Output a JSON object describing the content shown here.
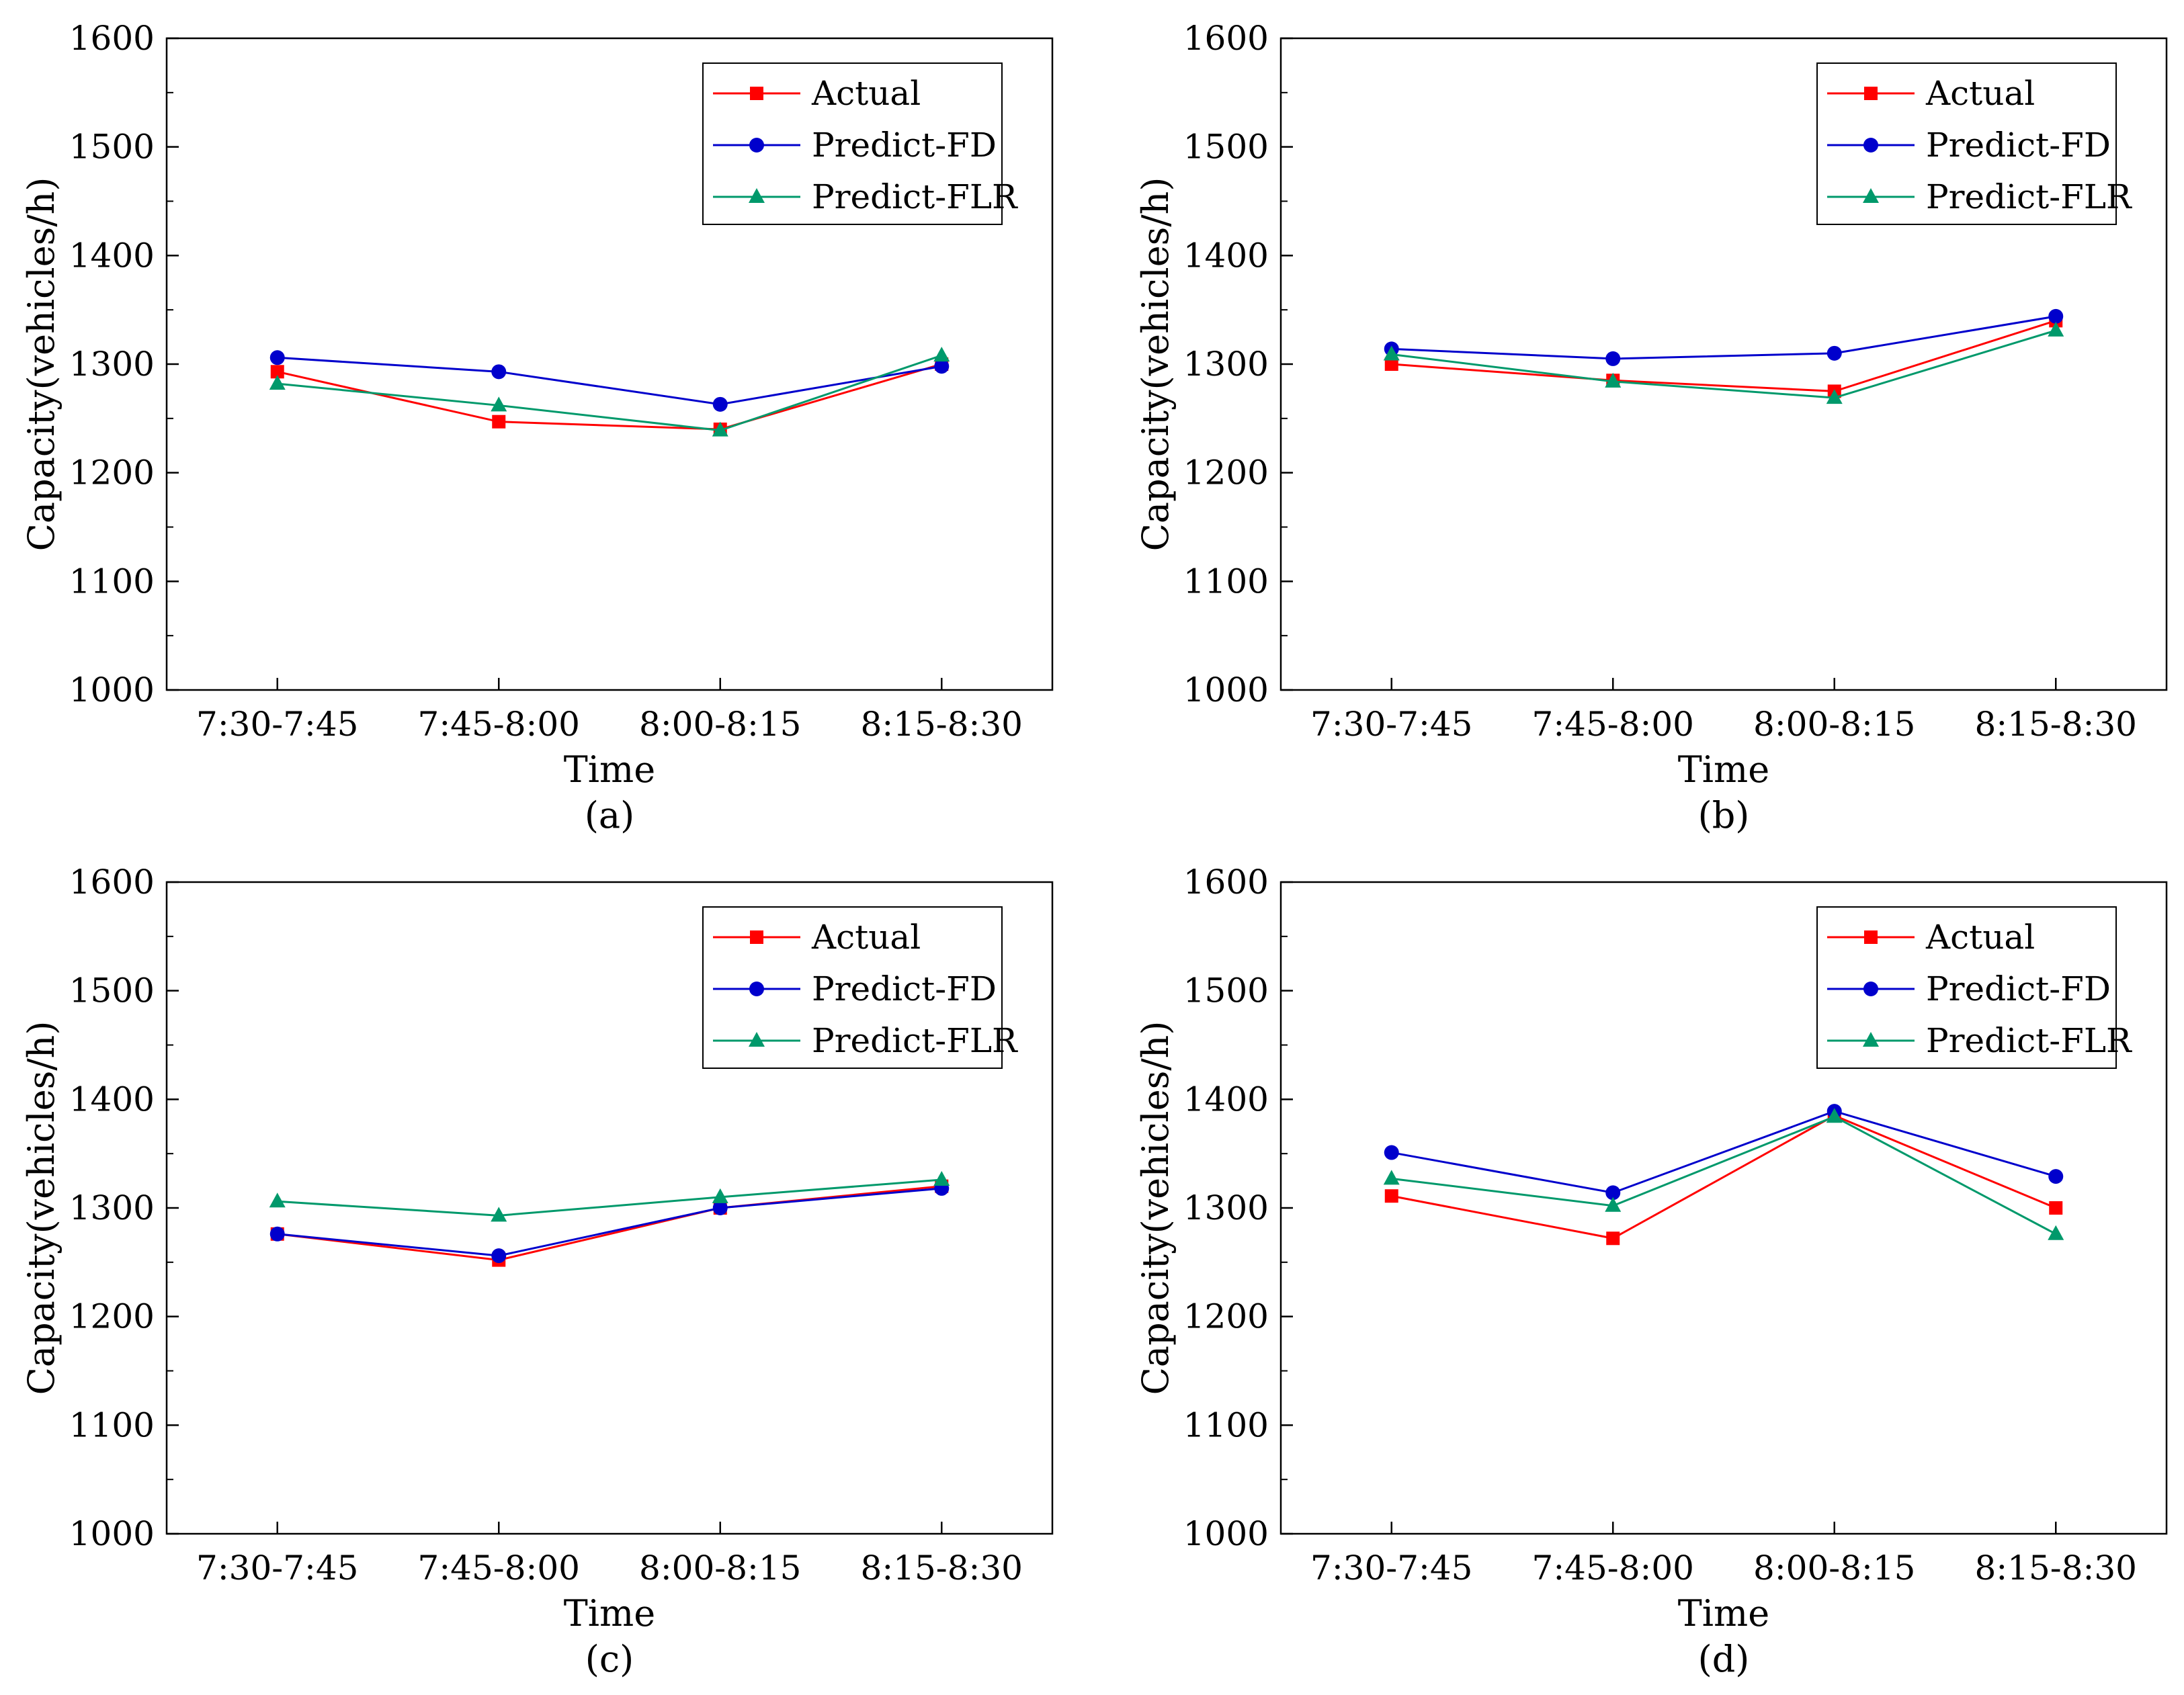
{
  "figure": {
    "colors": {
      "actual": "#ff0000",
      "predict_fd": "#0000cc",
      "predict_flr": "#00996b",
      "axis": "#000000"
    },
    "marker_shapes": {
      "Actual": "square",
      "Predict-FD": "circle",
      "Predict-FLR": "triangle"
    }
  },
  "chart_data": [
    {
      "type": "line",
      "caption": "(a)",
      "xlabel": "Time",
      "ylabel": "Capacity(vehicles/h)",
      "categories": [
        "7:30-7:45",
        "7:45-8:00",
        "8:00-8:15",
        "8:15-8:30"
      ],
      "ylim": [
        1000,
        1600
      ],
      "yticks": [
        1000,
        1100,
        1200,
        1300,
        1400,
        1500,
        1600
      ],
      "legend_position": "top-right",
      "series": [
        {
          "name": "Actual",
          "values": [
            1293,
            1247,
            1240,
            1300
          ]
        },
        {
          "name": "Predict-FD",
          "values": [
            1306,
            1293,
            1263,
            1298
          ]
        },
        {
          "name": "Predict-FLR",
          "values": [
            1282,
            1262,
            1239,
            1308
          ]
        }
      ]
    },
    {
      "type": "line",
      "caption": "(b)",
      "xlabel": "Time",
      "ylabel": "Capacity(vehicles/h)",
      "categories": [
        "7:30-7:45",
        "7:45-8:00",
        "8:00-8:15",
        "8:15-8:30"
      ],
      "ylim": [
        1000,
        1600
      ],
      "yticks": [
        1000,
        1100,
        1200,
        1300,
        1400,
        1500,
        1600
      ],
      "legend_position": "top-right",
      "series": [
        {
          "name": "Actual",
          "values": [
            1300,
            1285,
            1275,
            1340
          ]
        },
        {
          "name": "Predict-FD",
          "values": [
            1314,
            1305,
            1310,
            1344
          ]
        },
        {
          "name": "Predict-FLR",
          "values": [
            1309,
            1284,
            1269,
            1331
          ]
        }
      ]
    },
    {
      "type": "line",
      "caption": "(c)",
      "xlabel": "Time",
      "ylabel": "Capacity(vehicles/h)",
      "categories": [
        "7:30-7:45",
        "7:45-8:00",
        "8:00-8:15",
        "8:15-8:30"
      ],
      "ylim": [
        1000,
        1600
      ],
      "yticks": [
        1000,
        1100,
        1200,
        1300,
        1400,
        1500,
        1600
      ],
      "legend_position": "top-right",
      "series": [
        {
          "name": "Actual",
          "values": [
            1276,
            1252,
            1300,
            1320
          ]
        },
        {
          "name": "Predict-FD",
          "values": [
            1276,
            1256,
            1300,
            1318
          ]
        },
        {
          "name": "Predict-FLR",
          "values": [
            1306,
            1293,
            1310,
            1326
          ]
        }
      ]
    },
    {
      "type": "line",
      "caption": "(d)",
      "xlabel": "Time",
      "ylabel": "Capacity(vehicles/h)",
      "categories": [
        "7:30-7:45",
        "7:45-8:00",
        "8:00-8:15",
        "8:15-8:30"
      ],
      "ylim": [
        1000,
        1600
      ],
      "yticks": [
        1000,
        1100,
        1200,
        1300,
        1400,
        1500,
        1600
      ],
      "legend_position": "top-right",
      "series": [
        {
          "name": "Actual",
          "values": [
            1311,
            1272,
            1385,
            1300
          ]
        },
        {
          "name": "Predict-FD",
          "values": [
            1351,
            1314,
            1389,
            1329
          ]
        },
        {
          "name": "Predict-FLR",
          "values": [
            1327,
            1302,
            1384,
            1276
          ]
        }
      ]
    }
  ]
}
